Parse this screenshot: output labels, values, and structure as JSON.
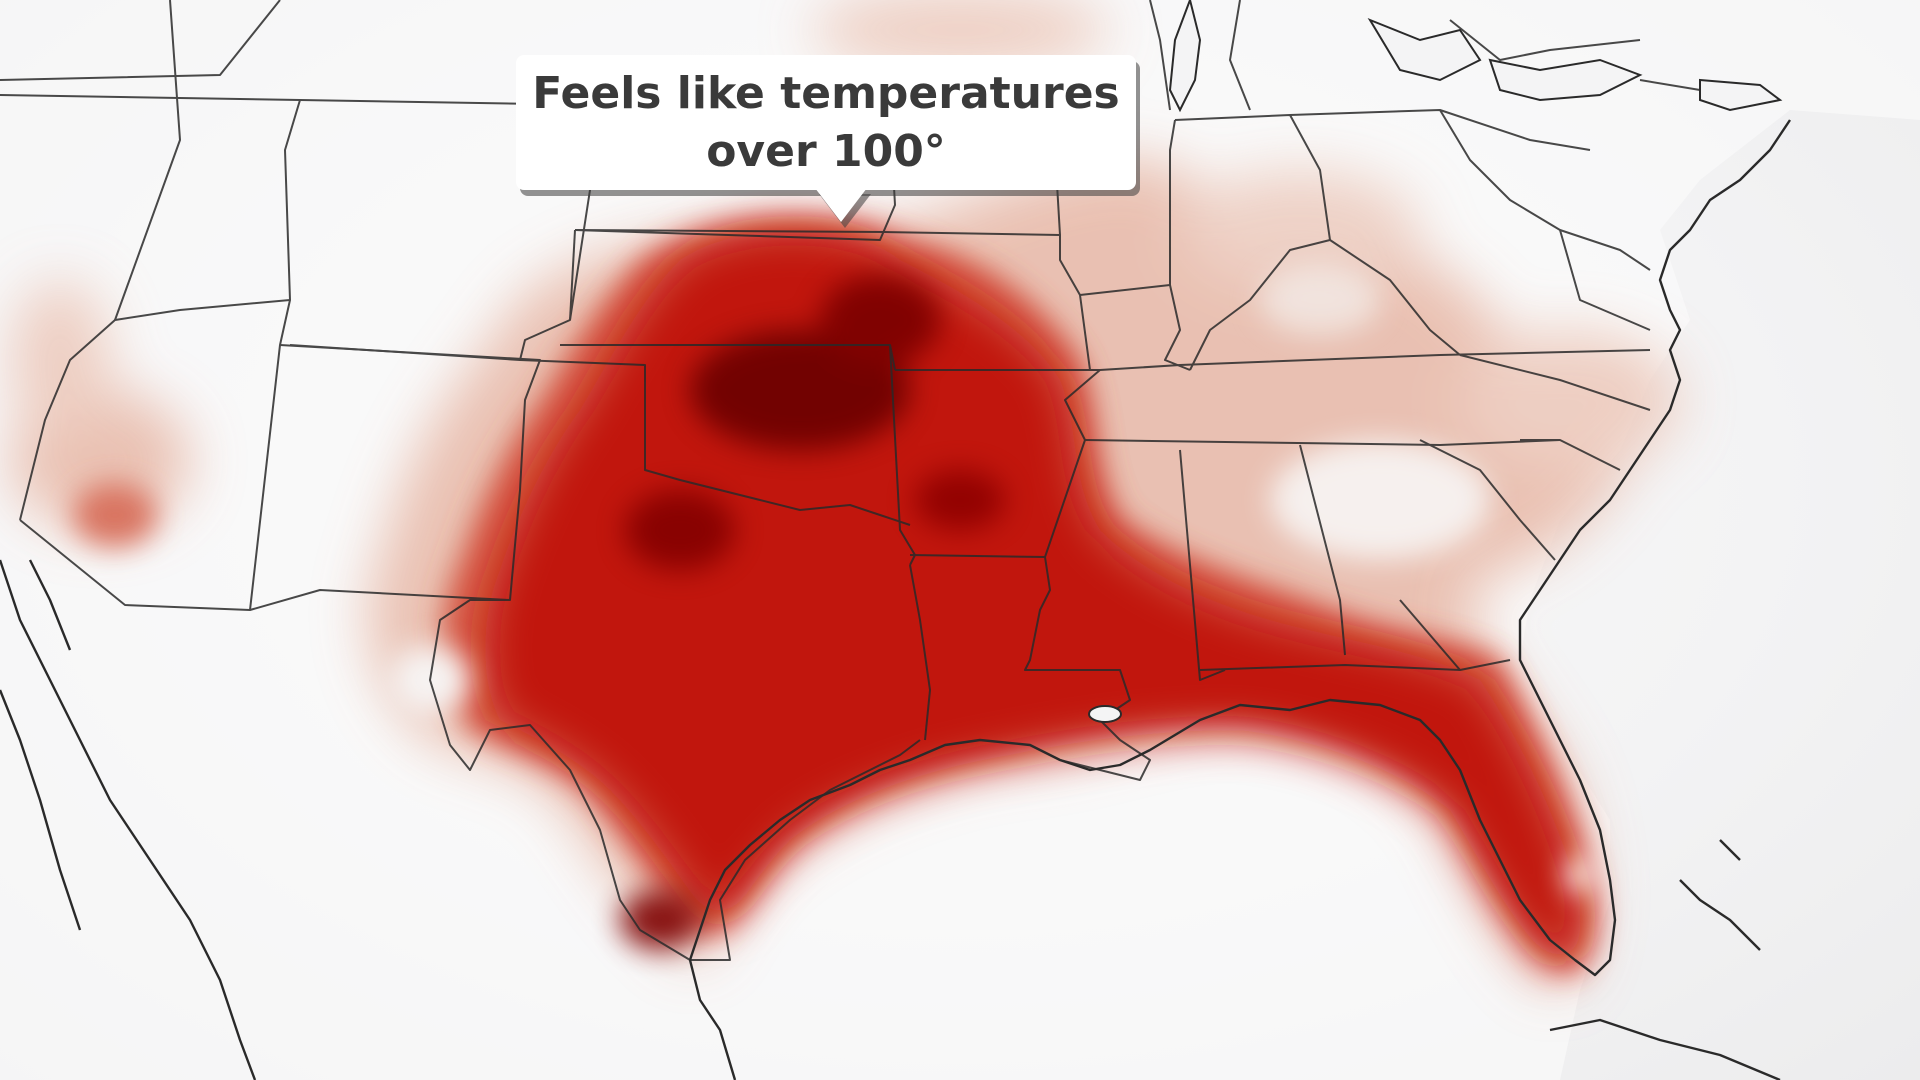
{
  "map": {
    "title": "Feels like temperatures\nover 100°",
    "colors": {
      "background": "#f4f4f5",
      "heat_light": "#e9c2b3",
      "heat_mid": "#d8573f",
      "heat_strong": "#c40f0b",
      "heat_extreme": "#6d0000",
      "boundary": "#2a2a2a"
    }
  }
}
